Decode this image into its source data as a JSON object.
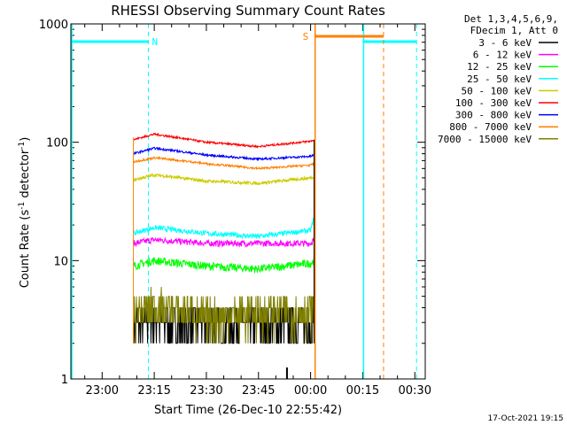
{
  "chart_data": {
    "type": "line",
    "title": "RHESSI Observing Summary Count Rates",
    "xlabel": "Start Time (26-Dec-10 22:55:42)",
    "ylabel_main": "Count Rate (s",
    "ylabel_sup1": "-1",
    "ylabel_mid": " detector",
    "ylabel_sup2": "-1",
    "ylabel_end": ")",
    "y_scale": "log",
    "ylim": [
      1,
      1000
    ],
    "xlim_minutes": [
      -9,
      93
    ],
    "x_ticks": [
      {
        "label": "23:00",
        "min": 0
      },
      {
        "label": "23:15",
        "min": 15
      },
      {
        "label": "23:30",
        "min": 30
      },
      {
        "label": "23:45",
        "min": 45
      },
      {
        "label": "00:00",
        "min": 60
      },
      {
        "label": "00:15",
        "min": 75
      },
      {
        "label": "00:30",
        "min": 90
      }
    ],
    "y_ticks": [
      {
        "label": "1",
        "value": 1
      },
      {
        "label": "10",
        "value": 10
      },
      {
        "label": "100",
        "value": 100
      },
      {
        "label": "1000",
        "value": 1000
      }
    ],
    "legend_header": [
      "Det 1,3,4,5,6,9,",
      "FDecim 1, Att 0"
    ],
    "legend_position": "right",
    "series": [
      {
        "name": "3 - 6 keV",
        "color": "#000000",
        "base": 3.0,
        "noise": 0.18,
        "values": [
          [
            9,
            3
          ],
          [
            15,
            3
          ],
          [
            30,
            3
          ],
          [
            45,
            3
          ],
          [
            60,
            3
          ],
          [
            61,
            3.2
          ]
        ]
      },
      {
        "name": "6 - 12 keV",
        "color": "#ff00ff",
        "base": 14,
        "noise": 0.06,
        "values": [
          [
            9,
            14
          ],
          [
            15,
            15
          ],
          [
            30,
            14
          ],
          [
            45,
            14
          ],
          [
            60,
            14
          ],
          [
            61,
            15
          ]
        ]
      },
      {
        "name": "12 - 25 keV",
        "color": "#00ff00",
        "base": 9.5,
        "noise": 0.08,
        "values": [
          [
            9,
            9
          ],
          [
            15,
            10
          ],
          [
            30,
            9
          ],
          [
            45,
            8.5
          ],
          [
            60,
            9.5
          ],
          [
            61,
            10
          ]
        ]
      },
      {
        "name": "25 - 50 keV",
        "color": "#00ffff",
        "base": 17,
        "noise": 0.05,
        "values": [
          [
            9,
            17
          ],
          [
            15,
            19
          ],
          [
            30,
            17
          ],
          [
            45,
            16
          ],
          [
            60,
            18
          ],
          [
            61,
            23
          ]
        ]
      },
      {
        "name": "50 - 100 keV",
        "color": "#cccc00",
        "base": 48,
        "noise": 0.03,
        "values": [
          [
            9,
            48
          ],
          [
            15,
            53
          ],
          [
            30,
            47
          ],
          [
            45,
            45
          ],
          [
            60,
            50
          ],
          [
            61,
            51
          ]
        ]
      },
      {
        "name": "100 - 300 keV",
        "color": "#ff0000",
        "base": 105,
        "noise": 0.02,
        "values": [
          [
            9,
            105
          ],
          [
            15,
            117
          ],
          [
            30,
            100
          ],
          [
            45,
            92
          ],
          [
            60,
            102
          ],
          [
            61,
            105
          ]
        ]
      },
      {
        "name": "300 - 800 keV",
        "color": "#0000ff",
        "base": 80,
        "noise": 0.02,
        "values": [
          [
            9,
            80
          ],
          [
            15,
            89
          ],
          [
            30,
            78
          ],
          [
            45,
            72
          ],
          [
            60,
            76
          ],
          [
            61,
            78
          ]
        ]
      },
      {
        "name": "800 - 7000 keV",
        "color": "#ff8000",
        "base": 68,
        "noise": 0.02,
        "values": [
          [
            9,
            68
          ],
          [
            15,
            74
          ],
          [
            30,
            66
          ],
          [
            45,
            60
          ],
          [
            60,
            64
          ],
          [
            61,
            66
          ]
        ]
      },
      {
        "name": "7000 - 15000 keV",
        "color": "#808000",
        "base": 3.6,
        "noise": 0.18,
        "values": [
          [
            9,
            3.5
          ],
          [
            15,
            4.2
          ],
          [
            30,
            3.4
          ],
          [
            45,
            3.6
          ],
          [
            60,
            3.8
          ],
          [
            61,
            4
          ]
        ]
      }
    ],
    "night_markers": {
      "label": "N",
      "color": "#00ffff"
    },
    "saa_markers": {
      "label": "S",
      "color": "#ff8000"
    }
  },
  "timestamp": "17-Oct-2021 19:15"
}
